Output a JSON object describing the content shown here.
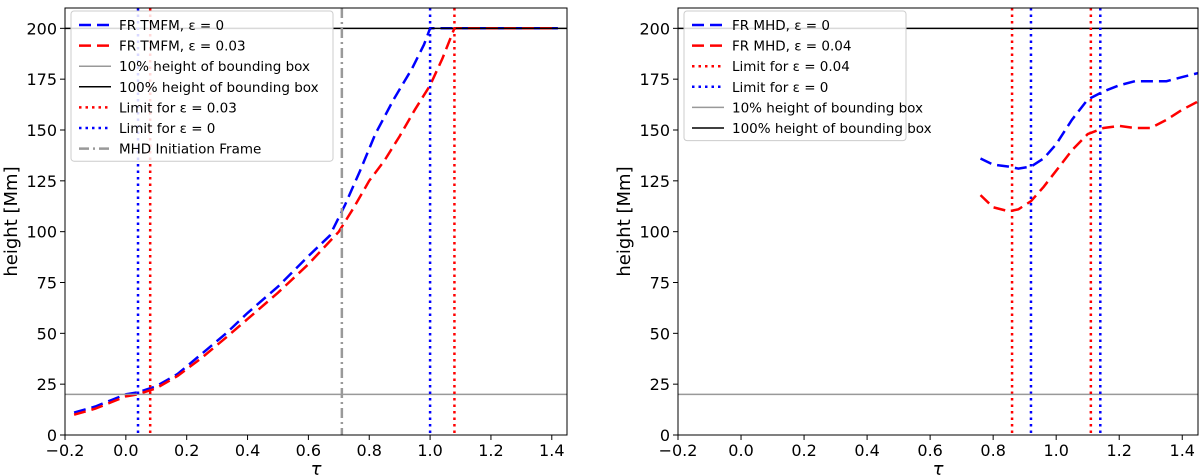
{
  "chart_data": [
    {
      "type": "line",
      "xlabel": "τ",
      "ylabel": "height [Mm]",
      "xlim": [
        -0.2,
        1.45
      ],
      "ylim": [
        0,
        210
      ],
      "xticks": [
        -0.2,
        0.0,
        0.2,
        0.4,
        0.6,
        0.8,
        1.0,
        1.2,
        1.4
      ],
      "xtick_labels": [
        "−0.2",
        "0.0",
        "0.2",
        "0.4",
        "0.6",
        "0.8",
        "1.0",
        "1.2",
        "1.4"
      ],
      "yticks": [
        0,
        25,
        50,
        75,
        100,
        125,
        150,
        175,
        200
      ],
      "ytick_labels": [
        "0",
        "25",
        "50",
        "75",
        "100",
        "125",
        "150",
        "175",
        "200"
      ],
      "legend_position": "top-left",
      "series": [
        {
          "name": "FR TMFM, ε = 0",
          "color": "#0000ff",
          "style": "dashed",
          "x": [
            -0.17,
            -0.1,
            -0.05,
            0.0,
            0.04,
            0.1,
            0.17,
            0.25,
            0.33,
            0.4,
            0.5,
            0.6,
            0.67,
            0.72,
            0.77,
            0.82,
            0.88,
            0.94,
            0.98,
            1.0,
            1.1,
            1.42
          ],
          "y": [
            11,
            14,
            17,
            20,
            21,
            24,
            30,
            40,
            50,
            60,
            73,
            88,
            98,
            113,
            130,
            148,
            165,
            180,
            192,
            200,
            200,
            200
          ]
        },
        {
          "name": "FR TMFM, ε = 0.03",
          "color": "#ff0000",
          "style": "dashed",
          "x": [
            -0.17,
            -0.1,
            -0.05,
            0.0,
            0.04,
            0.1,
            0.17,
            0.25,
            0.33,
            0.4,
            0.5,
            0.6,
            0.7,
            0.75,
            0.8,
            0.85,
            0.9,
            0.95,
            1.0,
            1.04,
            1.08,
            1.1,
            1.42
          ],
          "y": [
            10,
            13,
            16,
            19,
            20,
            23,
            29,
            38,
            48,
            57,
            70,
            84,
            100,
            112,
            125,
            135,
            147,
            160,
            172,
            185,
            200,
            200,
            200
          ]
        },
        {
          "name": "10% height of bounding box",
          "color": "#999999",
          "style": "solid",
          "hline": 20
        },
        {
          "name": "100% height of bounding box",
          "color": "#000000",
          "style": "solid",
          "hline": 200
        },
        {
          "name": "Limit for ε = 0.03",
          "color": "#ff0000",
          "style": "dotted",
          "vline": 0.08
        },
        {
          "name": "Limit for ε = 0",
          "color": "#0000ff",
          "style": "dotted",
          "vline": 0.04
        },
        {
          "name": "MHD Initiation Frame",
          "color": "#999999",
          "style": "dashdot",
          "vline": 0.71
        },
        {
          "color": "#0000ff",
          "style": "dotted",
          "vline": 1.0
        },
        {
          "color": "#ff0000",
          "style": "dotted",
          "vline": 1.08
        }
      ],
      "legend_order": [
        0,
        1,
        2,
        3,
        4,
        5,
        6
      ]
    },
    {
      "type": "line",
      "xlabel": "τ",
      "ylabel": "height [Mm]",
      "xlim": [
        -0.2,
        1.45
      ],
      "ylim": [
        0,
        210
      ],
      "xticks": [
        -0.2,
        0.0,
        0.2,
        0.4,
        0.6,
        0.8,
        1.0,
        1.2,
        1.4
      ],
      "xtick_labels": [
        "−0.2",
        "0.0",
        "0.2",
        "0.4",
        "0.6",
        "0.8",
        "1.0",
        "1.2",
        "1.4"
      ],
      "yticks": [
        0,
        25,
        50,
        75,
        100,
        125,
        150,
        175,
        200
      ],
      "ytick_labels": [
        "0",
        "25",
        "50",
        "75",
        "100",
        "125",
        "150",
        "175",
        "200"
      ],
      "legend_position": "top-left",
      "series": [
        {
          "name": "FR MHD, ε = 0",
          "color": "#0000ff",
          "style": "dashed",
          "x": [
            0.76,
            0.8,
            0.85,
            0.88,
            0.92,
            0.96,
            1.0,
            1.05,
            1.1,
            1.15,
            1.2,
            1.25,
            1.3,
            1.35,
            1.4,
            1.45
          ],
          "y": [
            136,
            133,
            132,
            131,
            132,
            136,
            143,
            155,
            165,
            169,
            172,
            174,
            174,
            174,
            176,
            178
          ]
        },
        {
          "name": "FR MHD, ε = 0.04",
          "color": "#ff0000",
          "style": "dashed",
          "x": [
            0.76,
            0.8,
            0.85,
            0.88,
            0.92,
            0.96,
            1.0,
            1.05,
            1.1,
            1.15,
            1.2,
            1.25,
            1.3,
            1.35,
            1.4,
            1.45
          ],
          "y": [
            118,
            112,
            110,
            111,
            115,
            122,
            130,
            140,
            148,
            151,
            152,
            151,
            151,
            155,
            160,
            164
          ]
        },
        {
          "name": "Limit for ε = 0.04",
          "color": "#ff0000",
          "style": "dotted",
          "vline": 0.86
        },
        {
          "name": "Limit for ε = 0",
          "color": "#0000ff",
          "style": "dotted",
          "vline": 0.92
        },
        {
          "name": "10% height of bounding box",
          "color": "#999999",
          "style": "solid",
          "hline": 20
        },
        {
          "name": "100% height of bounding box",
          "color": "#000000",
          "style": "solid",
          "hline": 200
        },
        {
          "color": "#ff0000",
          "style": "dotted",
          "vline": 1.11
        },
        {
          "color": "#0000ff",
          "style": "dotted",
          "vline": 1.14
        }
      ],
      "legend_order": [
        0,
        1,
        2,
        3,
        4,
        5
      ]
    }
  ]
}
